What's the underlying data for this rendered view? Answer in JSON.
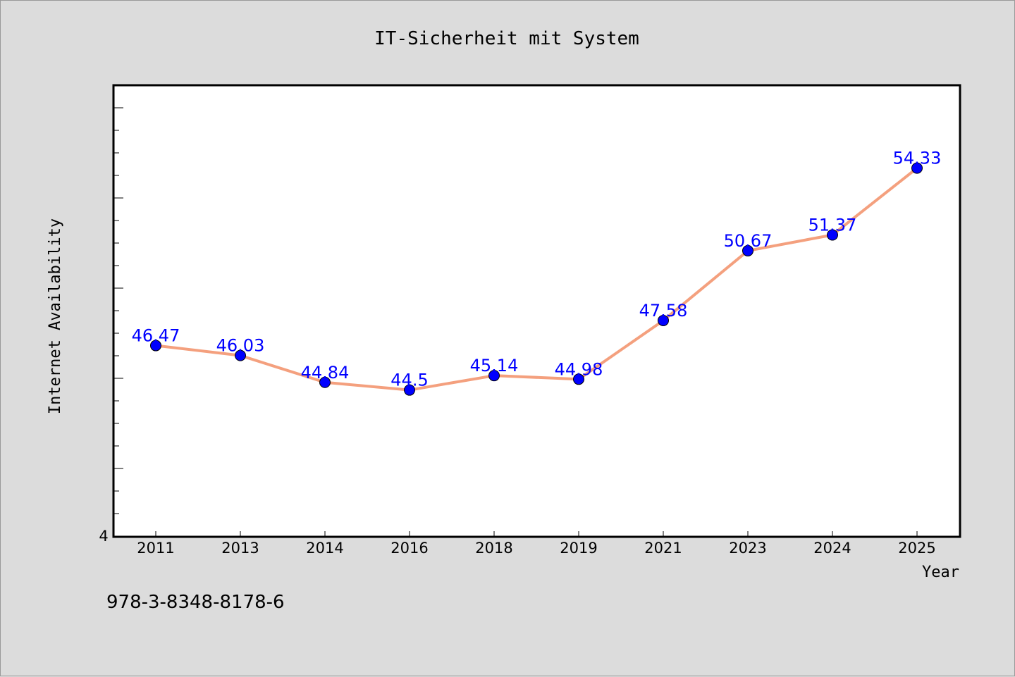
{
  "chart_data": {
    "type": "line",
    "title": "IT-Sicherheit mit System",
    "xlabel": "Year",
    "ylabel": "Internet Availability",
    "categories": [
      "2011",
      "2013",
      "2014",
      "2016",
      "2018",
      "2019",
      "2021",
      "2023",
      "2024",
      "2025"
    ],
    "series": [
      {
        "values": [
          46.47,
          46.03,
          44.84,
          44.5,
          45.14,
          44.98,
          47.58,
          50.67,
          51.37,
          54.33
        ],
        "data_labels": [
          "46.47",
          "46.03",
          "44.84",
          "44.5",
          "45.14",
          "44.98",
          "47.58",
          "50.67",
          "51.37",
          "54.33"
        ],
        "line_color": "#f4a07e",
        "marker_color": "#0000ff"
      }
    ],
    "y_tick_label": "4",
    "ylim": [
      38,
      58
    ],
    "grid": false,
    "data_label_color": "#0000ff"
  },
  "footer": {
    "isbn": "978-3-8348-8178-6"
  }
}
